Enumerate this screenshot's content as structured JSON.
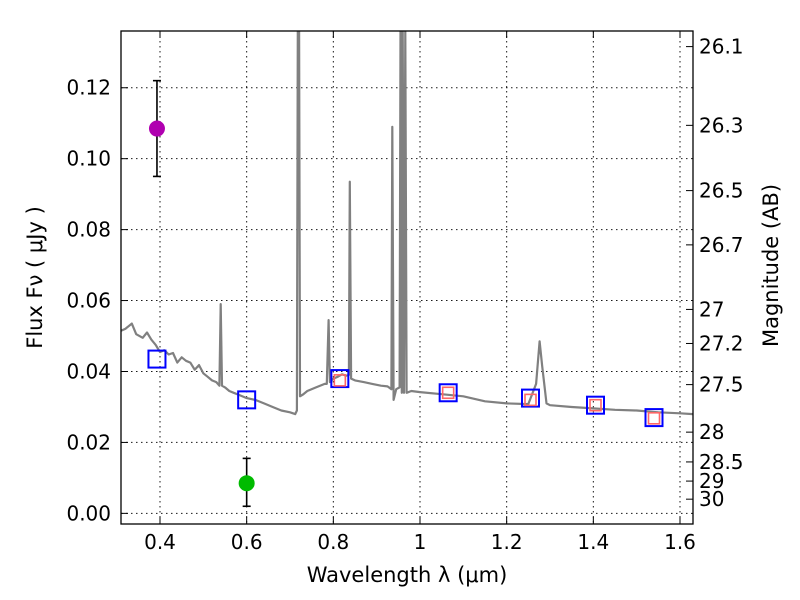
{
  "chart_data": {
    "type": "line",
    "title": "",
    "xlabel": "Wavelength  λ (μm)",
    "ylabel": "Flux  Fν  ( μJy )",
    "ylabel_right": "Magnitude (AB)",
    "xlim": [
      0.31,
      1.63
    ],
    "ylim": [
      -0.003,
      0.136
    ],
    "grid": true,
    "x_ticks": [
      {
        "value": 0.4,
        "label": "0.4"
      },
      {
        "value": 0.6,
        "label": "0.6"
      },
      {
        "value": 0.8,
        "label": "0.8"
      },
      {
        "value": 1.0,
        "label": "1"
      },
      {
        "value": 1.2,
        "label": "1.2"
      },
      {
        "value": 1.4,
        "label": "1.4"
      },
      {
        "value": 1.6,
        "label": "1.6"
      }
    ],
    "y_ticks": [
      {
        "value": 0.0,
        "label": "0.00"
      },
      {
        "value": 0.02,
        "label": "0.02"
      },
      {
        "value": 0.04,
        "label": "0.04"
      },
      {
        "value": 0.06,
        "label": "0.06"
      },
      {
        "value": 0.08,
        "label": "0.08"
      },
      {
        "value": 0.1,
        "label": "0.10"
      },
      {
        "value": 0.12,
        "label": "0.12"
      }
    ],
    "mag_ticks": [
      {
        "flux": 0.1316,
        "label": "26.1"
      },
      {
        "flux": 0.1094,
        "label": "26.3"
      },
      {
        "flux": 0.091,
        "label": "26.5"
      },
      {
        "flux": 0.0757,
        "label": "26.7"
      },
      {
        "flux": 0.0575,
        "label": "27"
      },
      {
        "flux": 0.0479,
        "label": "27.2"
      },
      {
        "flux": 0.0363,
        "label": "27.5"
      },
      {
        "flux": 0.0229,
        "label": "28"
      },
      {
        "flux": 0.0145,
        "label": "28.5"
      },
      {
        "flux": 0.0091,
        "label": "29"
      },
      {
        "flux": 0.004,
        "label": "30"
      }
    ],
    "series": [
      {
        "name": "SED model",
        "color": "#808080",
        "points": [
          [
            0.31,
            0.0515
          ],
          [
            0.32,
            0.052
          ],
          [
            0.335,
            0.0535
          ],
          [
            0.345,
            0.0505
          ],
          [
            0.36,
            0.0495
          ],
          [
            0.37,
            0.051
          ],
          [
            0.38,
            0.049
          ],
          [
            0.39,
            0.0475
          ],
          [
            0.4,
            0.0455
          ],
          [
            0.41,
            0.046
          ],
          [
            0.42,
            0.0448
          ],
          [
            0.43,
            0.0452
          ],
          [
            0.44,
            0.0425
          ],
          [
            0.45,
            0.044
          ],
          [
            0.46,
            0.043
          ],
          [
            0.47,
            0.0425
          ],
          [
            0.48,
            0.0405
          ],
          [
            0.49,
            0.0418
          ],
          [
            0.5,
            0.0395
          ],
          [
            0.51,
            0.0385
          ],
          [
            0.52,
            0.0375
          ],
          [
            0.53,
            0.037
          ],
          [
            0.537,
            0.036
          ],
          [
            0.54,
            0.059
          ],
          [
            0.543,
            0.036
          ],
          [
            0.55,
            0.0355
          ],
          [
            0.56,
            0.0345
          ],
          [
            0.57,
            0.034
          ],
          [
            0.58,
            0.0335
          ],
          [
            0.6,
            0.0325
          ],
          [
            0.62,
            0.032
          ],
          [
            0.64,
            0.031
          ],
          [
            0.66,
            0.03
          ],
          [
            0.68,
            0.029
          ],
          [
            0.7,
            0.0285
          ],
          [
            0.712,
            0.028
          ],
          [
            0.716,
            0.029
          ],
          [
            0.718,
            0.136
          ],
          [
            0.721,
            0.136
          ],
          [
            0.723,
            0.033
          ],
          [
            0.73,
            0.0335
          ],
          [
            0.74,
            0.0345
          ],
          [
            0.76,
            0.0355
          ],
          [
            0.78,
            0.0365
          ],
          [
            0.785,
            0.0365
          ],
          [
            0.789,
            0.0545
          ],
          [
            0.792,
            0.037
          ],
          [
            0.8,
            0.038
          ],
          [
            0.81,
            0.0385
          ],
          [
            0.82,
            0.0392
          ],
          [
            0.83,
            0.0388
          ],
          [
            0.836,
            0.039
          ],
          [
            0.838,
            0.0935
          ],
          [
            0.841,
            0.038
          ],
          [
            0.85,
            0.0375
          ],
          [
            0.87,
            0.037
          ],
          [
            0.89,
            0.0365
          ],
          [
            0.91,
            0.036
          ],
          [
            0.925,
            0.0358
          ],
          [
            0.934,
            0.035
          ],
          [
            0.936,
            0.109
          ],
          [
            0.939,
            0.032
          ],
          [
            0.945,
            0.035
          ],
          [
            0.953,
            0.0355
          ],
          [
            0.955,
            0.136
          ],
          [
            0.958,
            0.034
          ],
          [
            0.96,
            0.136
          ],
          [
            0.963,
            0.034
          ],
          [
            0.966,
            0.136
          ],
          [
            0.969,
            0.034
          ],
          [
            0.98,
            0.0345
          ],
          [
            1.0,
            0.0342
          ],
          [
            1.05,
            0.0336
          ],
          [
            1.1,
            0.033
          ],
          [
            1.15,
            0.0316
          ],
          [
            1.2,
            0.031
          ],
          [
            1.25,
            0.0308
          ],
          [
            1.268,
            0.0365
          ],
          [
            1.276,
            0.0485
          ],
          [
            1.282,
            0.0415
          ],
          [
            1.292,
            0.031
          ],
          [
            1.3,
            0.0305
          ],
          [
            1.35,
            0.03
          ],
          [
            1.4,
            0.0296
          ],
          [
            1.45,
            0.0292
          ],
          [
            1.5,
            0.029
          ],
          [
            1.55,
            0.0285
          ],
          [
            1.6,
            0.0282
          ],
          [
            1.63,
            0.028
          ]
        ]
      }
    ],
    "model_photometry": {
      "name": "model bands",
      "color": "#0000ff",
      "points": [
        [
          0.393,
          0.0435
        ],
        [
          0.6,
          0.032
        ],
        [
          0.815,
          0.038
        ],
        [
          1.065,
          0.034
        ],
        [
          1.255,
          0.0325
        ],
        [
          1.405,
          0.0305
        ],
        [
          1.54,
          0.027
        ]
      ]
    },
    "observed_squares": {
      "name": "observed bands",
      "color": "#ff6666",
      "points": [
        [
          0.815,
          0.0375
        ],
        [
          1.065,
          0.034
        ],
        [
          1.255,
          0.032
        ],
        [
          1.405,
          0.0305
        ],
        [
          1.54,
          0.0268
        ]
      ]
    },
    "observed_points": [
      {
        "name": "purple point",
        "color": "#b000b0",
        "x": 0.393,
        "y": 0.1085,
        "err_low": 0.095,
        "err_high": 0.122
      },
      {
        "name": "green point",
        "color": "#00bb00",
        "x": 0.6,
        "y": 0.0085,
        "err_low": 0.002,
        "err_high": 0.0155
      }
    ]
  }
}
